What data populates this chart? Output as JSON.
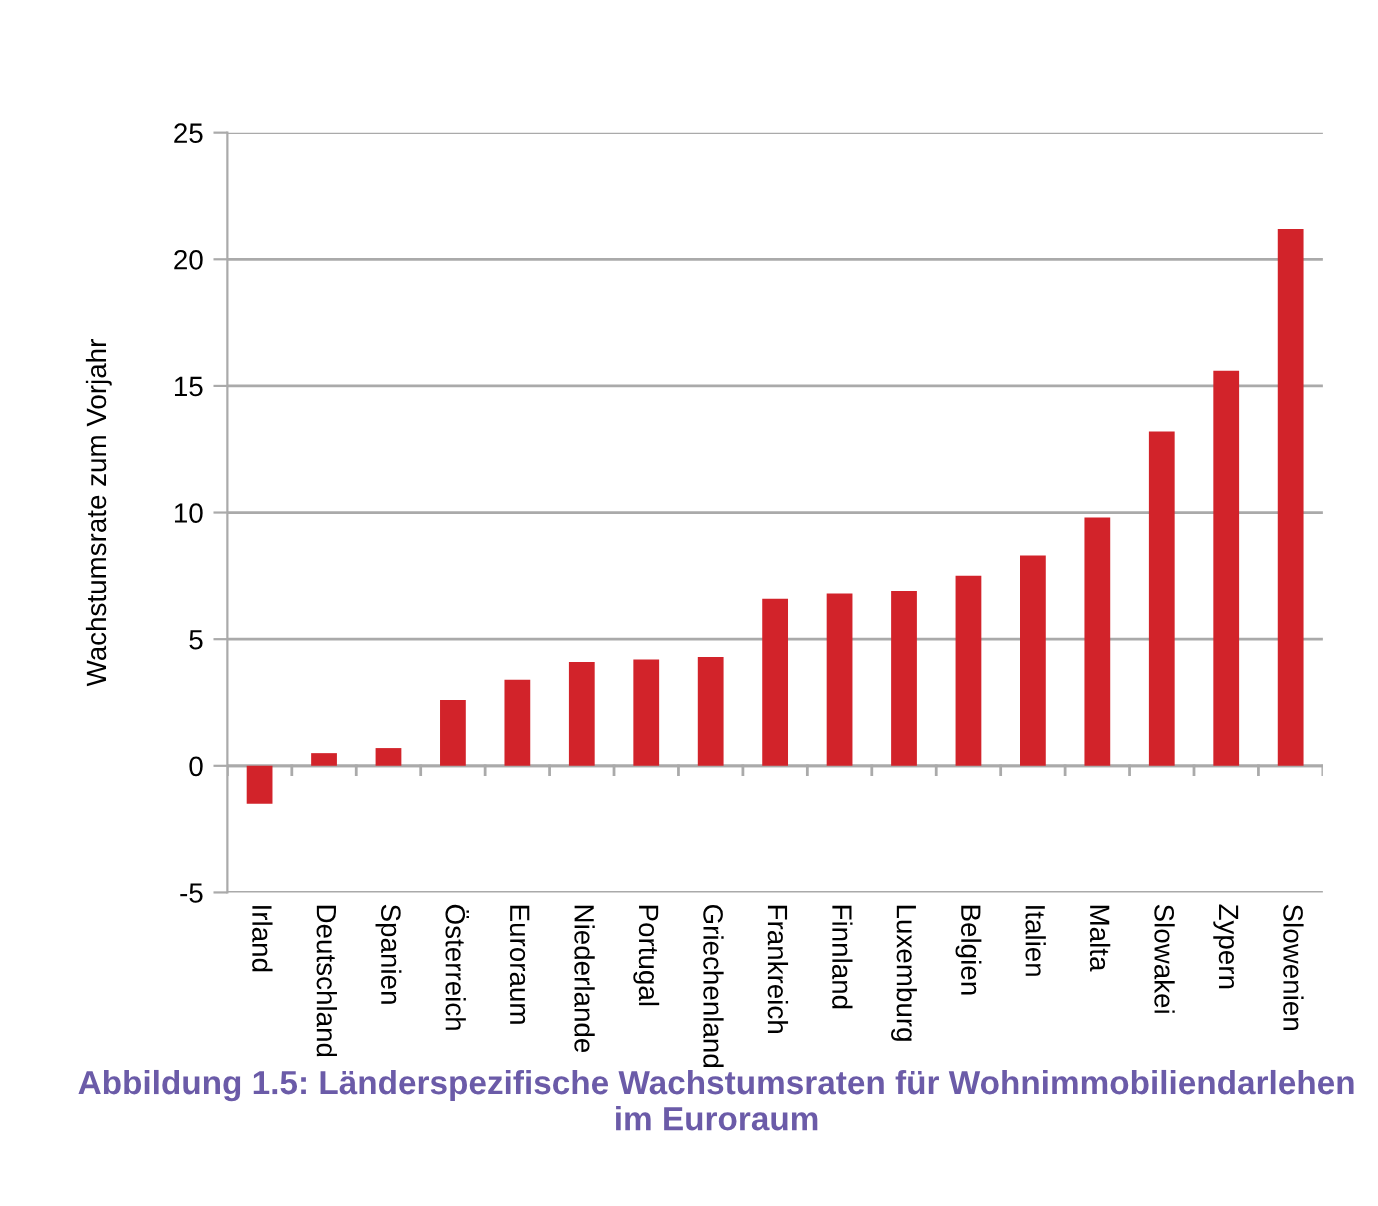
{
  "chart_data": {
    "type": "bar",
    "title": "Abbildung 1.5: Länderspezifische Wachstumsraten für Wohnimmobiliendarlehen im Euroraum",
    "ylabel": "Wachstumsrate zum Vorjahr",
    "categories": [
      "Irland",
      "Deutschland",
      "Spanien",
      "Österreich",
      "Euroraum",
      "Niederlande",
      "Portugal",
      "Griechenland",
      "Frankreich",
      "Finnland",
      "Luxemburg",
      "Belgien",
      "Italien",
      "Malta",
      "Slowakei",
      "Zypern",
      "Slowenien"
    ],
    "series": [
      {
        "color": "#d2232a",
        "values": [
          -1.5,
          0.5,
          0.7,
          2.6,
          3.4,
          4.1,
          4.2,
          4.3,
          6.6,
          6.8,
          6.9,
          7.5,
          8.3,
          9.8,
          13.2,
          15.6,
          21.2
        ]
      }
    ],
    "ylim": [
      -5,
      25
    ],
    "yticks": [
      -5,
      0,
      5,
      10,
      15,
      20,
      25
    ],
    "grid": "y",
    "legend": false
  }
}
